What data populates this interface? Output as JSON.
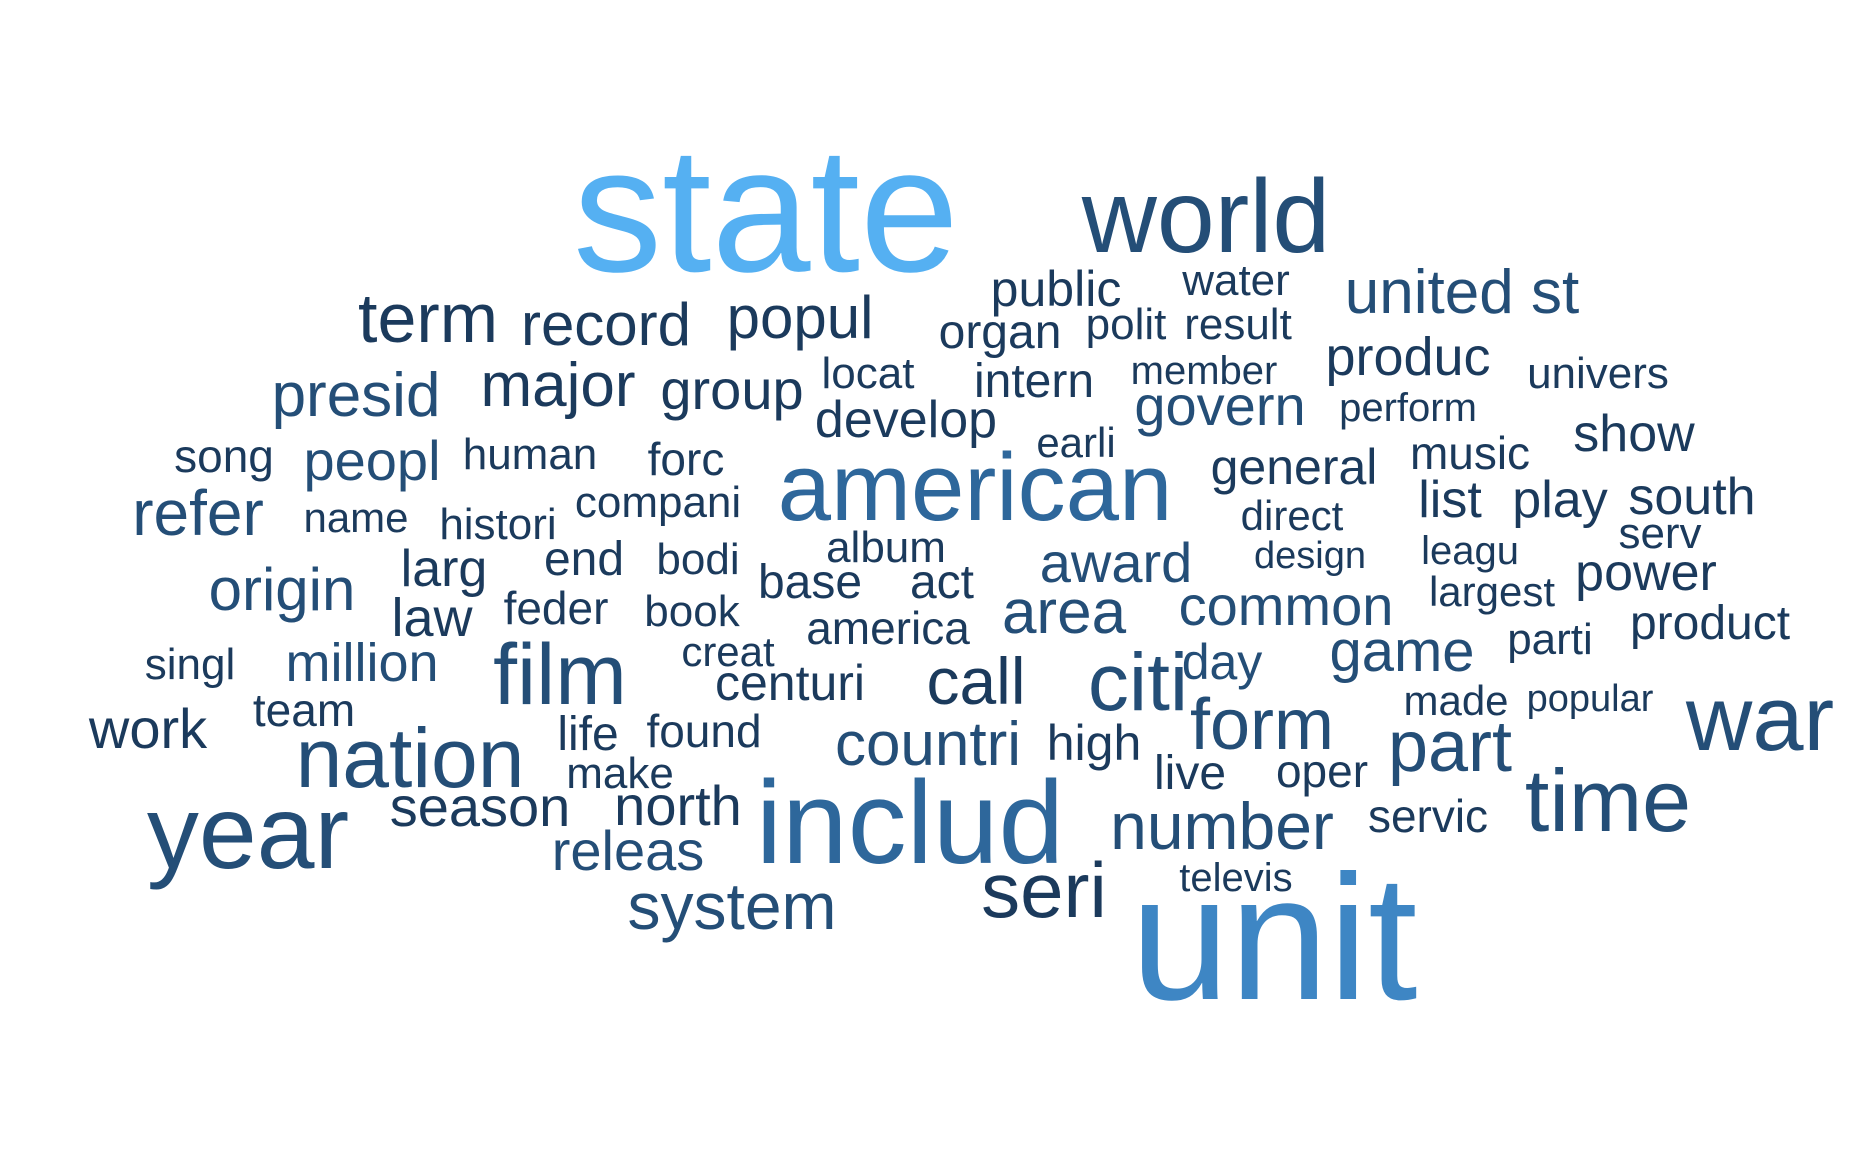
{
  "words": {
    "state": "state",
    "world": "world",
    "public": "public",
    "water": "water",
    "united_st": "united st",
    "term": "term",
    "record": "record",
    "popul": "popul",
    "organ": "organ",
    "polit": "polit",
    "result": "result",
    "produc": "produc",
    "presid": "presid",
    "major": "major",
    "group": "group",
    "locat": "locat",
    "intern": "intern",
    "member": "member",
    "univers": "univers",
    "govern": "govern",
    "perform": "perform",
    "develop": "develop",
    "show": "show",
    "song": "song",
    "peopl": "peopl",
    "human": "human",
    "forc": "forc",
    "earli": "earli",
    "american": "american",
    "general": "general",
    "music": "music",
    "refer": "refer",
    "name": "name",
    "histori": "histori",
    "compani": "compani",
    "direct": "direct",
    "list": "list",
    "play": "play",
    "south": "south",
    "serv": "serv",
    "album": "album",
    "end": "end",
    "bodi": "bodi",
    "award": "award",
    "design": "design",
    "leagu": "leagu",
    "origin": "origin",
    "larg": "larg",
    "base": "base",
    "act": "act",
    "power": "power",
    "law": "law",
    "feder": "feder",
    "book": "book",
    "area": "area",
    "common": "common",
    "largest": "largest",
    "america": "america",
    "product": "product",
    "creat": "creat",
    "parti": "parti",
    "singl": "singl",
    "million": "million",
    "film": "film",
    "centuri": "centuri",
    "call": "call",
    "citi": "citi",
    "day": "day",
    "game": "game",
    "made": "made",
    "popular": "popular",
    "team": "team",
    "work": "work",
    "war": "war",
    "life": "life",
    "found": "found",
    "countri": "countri",
    "high": "high",
    "form": "form",
    "part": "part",
    "nation": "nation",
    "make": "make",
    "live": "live",
    "oper": "oper",
    "season": "season",
    "north": "north",
    "includ": "includ",
    "time": "time",
    "year": "year",
    "number": "number",
    "servic": "servic",
    "releas": "releas",
    "seri": "seri",
    "televis": "televis",
    "system": "system",
    "unit": "unit"
  },
  "colors": {
    "lightest": "#55B0F2",
    "light": "#3E86C4",
    "medium": "#2E679B",
    "dark": "#244E77",
    "darkest": "#1B3A5C"
  }
}
